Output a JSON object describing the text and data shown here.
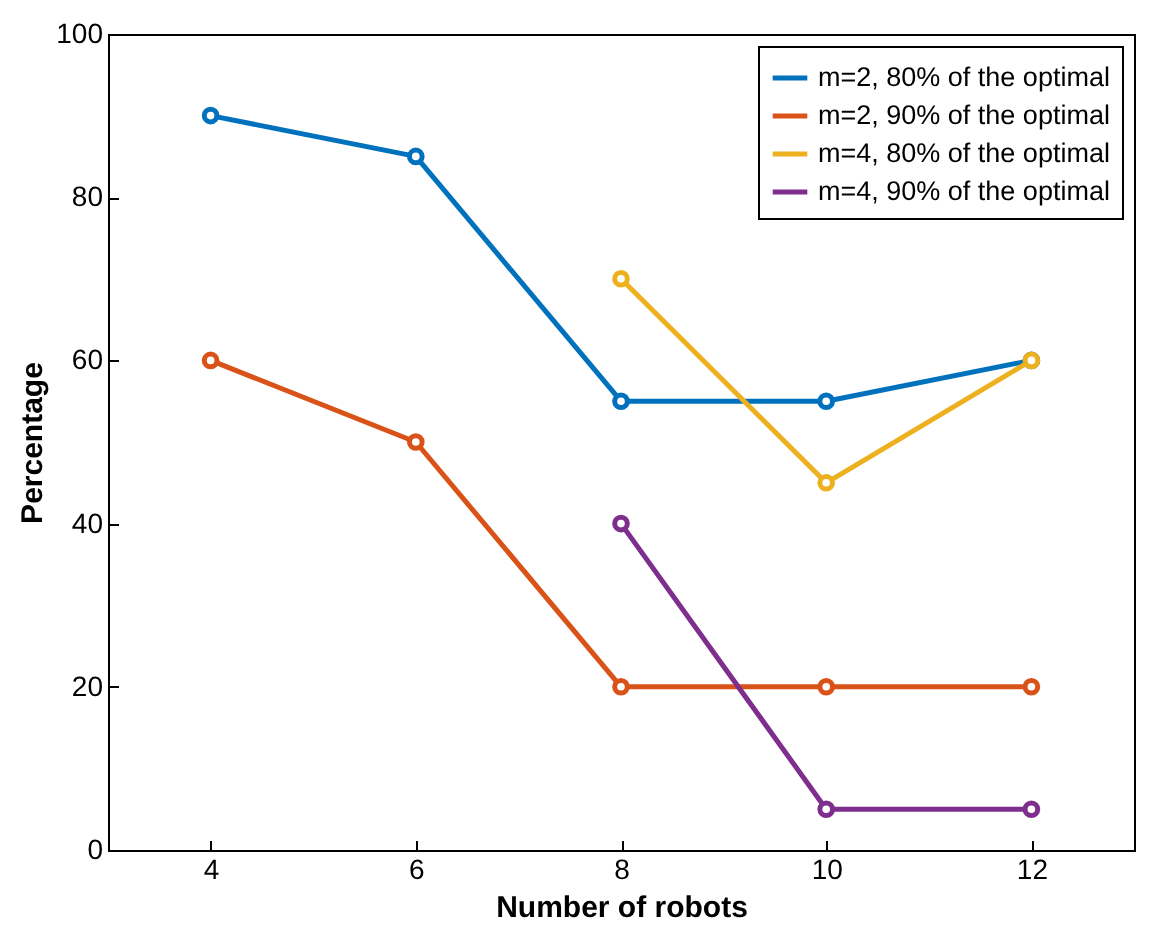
{
  "chart_data": {
    "type": "line",
    "xlabel": "Number of robots",
    "ylabel": "Percentage",
    "xlim": [
      3,
      13
    ],
    "xticks": [
      4,
      6,
      8,
      10,
      12
    ],
    "ylim": [
      0,
      100
    ],
    "yticks": [
      0,
      20,
      40,
      60,
      80,
      100
    ],
    "grid": false,
    "legend": "top right",
    "marker": "circle",
    "line_style": "solid",
    "series": [
      {
        "name": "m=2, 80% of the optimal",
        "color": "#0072bd",
        "x": [
          4,
          6,
          8,
          10,
          12
        ],
        "values": [
          90,
          85,
          55,
          55,
          60
        ]
      },
      {
        "name": "m=2, 90% of the optimal",
        "color": "#d95319",
        "x": [
          4,
          6,
          8,
          10,
          12
        ],
        "values": [
          60,
          50,
          20,
          20,
          20
        ]
      },
      {
        "name": "m=4, 80% of the optimal",
        "color": "#edb120",
        "x": [
          8,
          10,
          12
        ],
        "values": [
          70,
          45,
          60
        ]
      },
      {
        "name": "m=4, 90% of the optimal",
        "color": "#7e2f8e",
        "x": [
          8,
          10,
          12
        ],
        "values": [
          40,
          5,
          5
        ]
      }
    ]
  }
}
